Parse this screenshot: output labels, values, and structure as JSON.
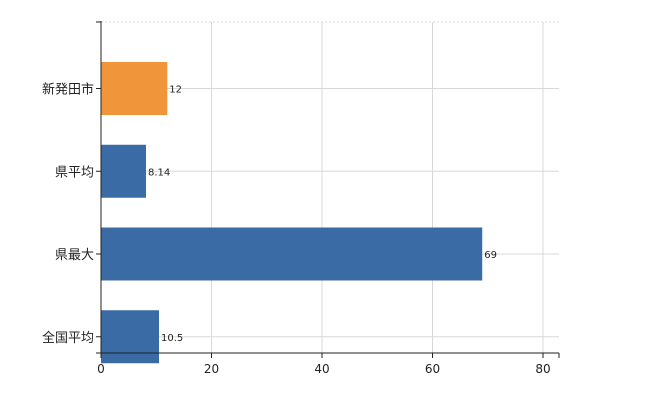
{
  "chart_data": {
    "type": "bar",
    "orientation": "horizontal",
    "categories": [
      "新発田市",
      "県平均",
      "県最大",
      "全国平均"
    ],
    "values": [
      12,
      8.14,
      69,
      10.5
    ],
    "data_labels": [
      "12",
      "8.14",
      "69",
      "10.5"
    ],
    "bar_colors": [
      "#F0953A",
      "#3B6BA5",
      "#3B6BA5",
      "#3B6BA5"
    ],
    "xlim": [
      0,
      80
    ],
    "xticks": [
      0,
      20,
      40,
      60,
      80
    ],
    "grid": true,
    "legend": "none"
  }
}
